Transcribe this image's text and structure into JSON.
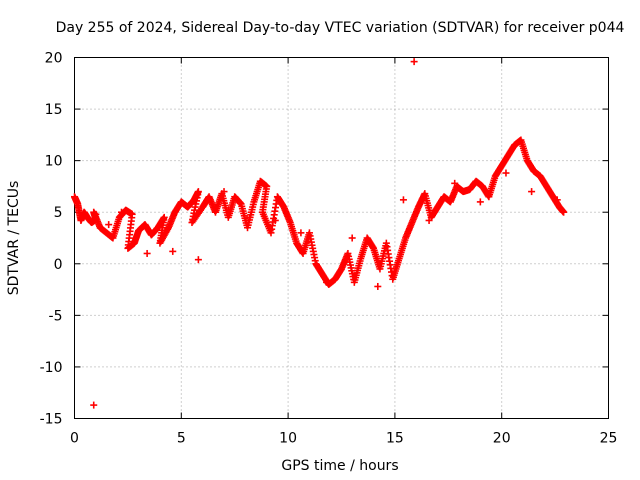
{
  "chart_data": {
    "type": "scatter",
    "title": "Day 255 of 2024, Sidereal Day-to-day VTEC variation (SDTVAR) for receiver p044",
    "xlabel": "GPS time / hours",
    "ylabel": "SDTVAR / TECUs",
    "xlim": [
      0,
      25
    ],
    "ylim": [
      -15,
      20
    ],
    "xticks": [
      0,
      5,
      10,
      15,
      20,
      25
    ],
    "xtick_labels": [
      "0",
      "5",
      "10",
      "15",
      "20",
      "25"
    ],
    "yticks": [
      -15,
      -10,
      -5,
      0,
      5,
      10,
      15,
      20
    ],
    "ytick_labels": [
      "-15",
      "-10",
      "-5",
      "0",
      "5",
      "10",
      "15",
      "20"
    ],
    "grid": true,
    "marker": "+",
    "series": [
      {
        "name": "p044",
        "color": "#ff0000",
        "x": [
          0.0,
          0.15,
          0.3,
          0.45,
          0.6,
          0.8,
          1.0,
          0.9,
          1.2,
          1.5,
          1.8,
          2.1,
          2.4,
          2.7,
          2.5,
          2.8,
          3.0,
          3.3,
          3.6,
          3.9,
          4.2,
          4.0,
          4.4,
          4.7,
          5.0,
          5.3,
          5.6,
          5.8,
          5.5,
          6.0,
          6.3,
          6.6,
          6.9,
          7.2,
          7.5,
          7.8,
          8.1,
          8.4,
          8.7,
          9.0,
          8.8,
          9.2,
          9.5,
          9.8,
          10.1,
          10.4,
          10.7,
          11.0,
          11.3,
          11.6,
          11.9,
          12.2,
          12.5,
          12.8,
          13.1,
          13.4,
          13.7,
          14.0,
          14.3,
          14.6,
          14.9,
          15.2,
          15.5,
          15.8,
          16.1,
          16.4,
          16.7,
          17.0,
          17.3,
          17.6,
          17.9,
          18.2,
          18.5,
          18.8,
          19.1,
          19.4,
          19.7,
          20.0,
          20.3,
          20.6,
          20.9,
          21.2,
          21.5,
          21.8,
          22.1,
          22.4,
          22.7,
          22.9,
          15.9,
          0.9,
          1.0,
          1.6,
          2.2,
          3.4,
          4.6,
          5.8,
          7.0,
          8.2,
          9.4,
          10.6,
          11.8,
          13.0,
          14.2,
          15.4,
          16.6,
          17.8,
          19.0,
          20.2,
          21.4,
          22.6
        ],
        "y": [
          6.5,
          5.8,
          4.2,
          5.0,
          4.5,
          4.0,
          4.3,
          5.0,
          3.5,
          3.0,
          2.5,
          4.5,
          5.2,
          4.8,
          1.5,
          2.0,
          3.2,
          3.8,
          2.8,
          3.5,
          4.5,
          2.0,
          3.5,
          5.0,
          6.0,
          5.5,
          6.2,
          7.0,
          4.0,
          5.5,
          6.5,
          5.0,
          6.8,
          4.5,
          6.5,
          5.8,
          3.5,
          6.0,
          8.0,
          7.5,
          5.0,
          3.0,
          6.5,
          5.5,
          4.0,
          2.0,
          1.0,
          3.0,
          0.0,
          -1.0,
          -2.0,
          -1.5,
          -0.5,
          1.0,
          -1.8,
          0.5,
          2.5,
          1.5,
          -0.5,
          2.0,
          -1.5,
          0.5,
          2.5,
          4.0,
          5.5,
          6.8,
          4.5,
          5.5,
          6.5,
          6.0,
          7.5,
          7.0,
          7.2,
          8.0,
          7.5,
          6.5,
          8.5,
          9.5,
          10.5,
          11.5,
          12.0,
          10.0,
          9.0,
          8.5,
          7.5,
          6.5,
          5.5,
          5.0,
          19.6,
          -13.7,
          4.8,
          3.8,
          5.0,
          1.0,
          1.2,
          0.4,
          7.0,
          4.5,
          4.2,
          3.0,
          -1.8,
          2.5,
          -2.2,
          6.2,
          4.2,
          7.8,
          6.0,
          8.8,
          7.0,
          6.2
        ]
      }
    ]
  }
}
